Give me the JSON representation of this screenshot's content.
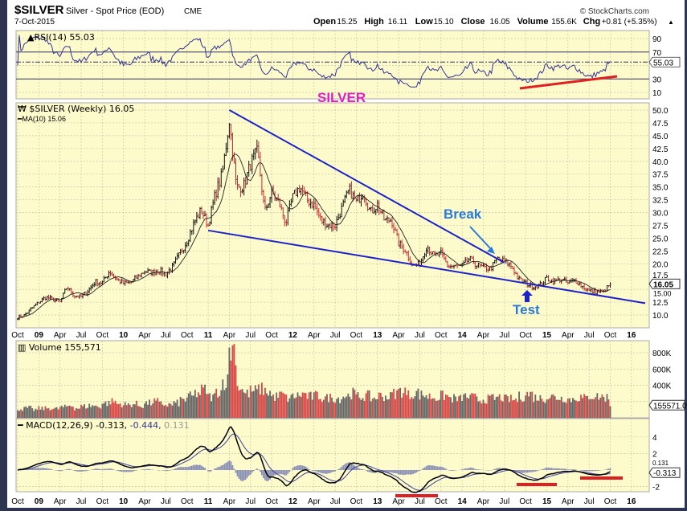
{
  "header": {
    "symbol": "$SILVER",
    "name": "Silver - Spot Price (EOD)",
    "exchange": "CME",
    "date": "7-Oct-2015",
    "brand": "© StockCharts.com",
    "quote": {
      "open_label": "Open",
      "open": "15.25",
      "high_label": "High",
      "high": "16.11",
      "low_label": "Low",
      "low": "15.10",
      "close_label": "Close",
      "close": "16.05",
      "volume_label": "Volume",
      "volume": "155.6K",
      "chg_label": "Chg",
      "chg": "+0.81 (+5.35%)"
    }
  },
  "colors": {
    "panel_bg": "#fdfbcc",
    "up": "#111111",
    "down": "#c8282e",
    "trendline": "#1c23c8",
    "annot": "#2a7ad8",
    "silver_label": "#e020c0",
    "red_line": "#e02020",
    "rsi": "#333399",
    "vol_up": "#666666",
    "vol_down": "#d84848",
    "hist": "#8a8fb8"
  },
  "chart_data": [
    {
      "type": "line",
      "title": "RSI(14) 55.03",
      "panel": "rsi",
      "y_ticks": [
        "90",
        "70",
        "50",
        "30",
        "10"
      ],
      "ylim": [
        0,
        100
      ],
      "reference_lines": [
        70,
        30
      ],
      "current": "55.03",
      "annotation": "SILVER"
    },
    {
      "type": "candlestick",
      "title": "$SILVER (Weekly) 16.05",
      "ma_label": "MA(10) 15.06",
      "panel": "price",
      "ylim": [
        8,
        51.5
      ],
      "y_ticks": [
        "50.0",
        "47.5",
        "45.0",
        "42.5",
        "40.0",
        "37.5",
        "35.0",
        "32.5",
        "30.0",
        "27.5",
        "25.0",
        "22.5",
        "20.0",
        "17.5",
        "15.00",
        "12.5",
        "10.0"
      ],
      "current": "16.05",
      "x_start": "2008-10",
      "monthly_close": [
        9.5,
        10,
        11.3,
        12.5,
        13.5,
        13,
        12.5,
        15.5,
        13.8,
        13.5,
        14.8,
        16.5,
        16.3,
        18.5,
        17,
        16.2,
        16.3,
        17.5,
        18.5,
        18.3,
        18.7,
        18,
        19.5,
        22,
        24.5,
        28,
        30.5,
        27.5,
        33.5,
        37.5,
        48,
        35,
        35,
        39.5,
        42,
        30,
        34,
        32,
        28,
        33,
        35,
        32.5,
        31.5,
        28.5,
        27.5,
        27.5,
        31,
        34.5,
        32,
        34,
        30,
        31.5,
        28.5,
        28.5,
        24,
        22.5,
        19.5,
        20,
        23.5,
        21.5,
        22,
        19.5,
        19.5,
        19.5,
        21,
        19.8,
        19.2,
        19,
        21,
        20.5,
        19.5,
        17,
        16.2,
        15.5,
        15.8,
        17.2,
        16.5,
        17,
        16.2,
        16.8,
        15.6,
        14.7,
        14.5,
        14.5,
        16.05
      ],
      "trendlines": [
        {
          "name": "upper",
          "from": {
            "month": 30,
            "price": 50
          },
          "to": {
            "month": 69,
            "price": 20.2
          }
        },
        {
          "name": "lower",
          "from": {
            "month": 27,
            "price": 26.5
          },
          "to": {
            "month": 89,
            "price": 12.3
          }
        }
      ],
      "annotations": [
        {
          "text": "Break",
          "month": 66,
          "price": 20.8
        },
        {
          "text": "Test",
          "month": 72,
          "price": 15.2
        }
      ]
    },
    {
      "type": "bar",
      "title": "Volume 155,571",
      "panel": "volume",
      "y_ticks": [
        "800K",
        "600K",
        "400K",
        "200K"
      ],
      "ylim": [
        0,
        950
      ],
      "current": "155571.0",
      "monthly_volume_k": [
        110,
        120,
        100,
        115,
        120,
        110,
        130,
        150,
        120,
        140,
        150,
        140,
        180,
        200,
        170,
        160,
        170,
        150,
        180,
        200,
        170,
        160,
        180,
        220,
        260,
        300,
        340,
        260,
        330,
        450,
        850,
        380,
        300,
        330,
        350,
        320,
        260,
        280,
        240,
        270,
        290,
        260,
        270,
        240,
        250,
        240,
        270,
        300,
        260,
        270,
        240,
        270,
        260,
        300,
        330,
        280,
        310,
        280,
        260,
        250,
        270,
        240,
        230,
        260,
        250,
        220,
        230,
        240,
        250,
        230,
        220,
        260,
        290,
        250,
        240,
        260,
        250,
        240,
        230,
        250,
        240,
        270,
        260,
        250,
        160
      ]
    },
    {
      "type": "line",
      "title": "MACD(12,26,9) -0.313, -0.444, 0.131",
      "legend": {
        "macd": "-0.313",
        "signal": "-0.444",
        "histogram": "0.131"
      },
      "panel": "macd",
      "y_ticks": [
        "4",
        "2",
        "-2"
      ],
      "ylim": [
        -3,
        5.5
      ],
      "current": "-0.313",
      "current_hist": "0.131"
    }
  ],
  "x_axis": {
    "labels": [
      {
        "t": "Oct",
        "m": 0
      },
      {
        "t": "09",
        "m": 3,
        "bold": true
      },
      {
        "t": "Apr",
        "m": 6
      },
      {
        "t": "Jul",
        "m": 9
      },
      {
        "t": "Oct",
        "m": 12
      },
      {
        "t": "10",
        "m": 15,
        "bold": true
      },
      {
        "t": "Apr",
        "m": 18
      },
      {
        "t": "Jul",
        "m": 21
      },
      {
        "t": "Oct",
        "m": 24
      },
      {
        "t": "11",
        "m": 27,
        "bold": true
      },
      {
        "t": "Apr",
        "m": 30
      },
      {
        "t": "Jul",
        "m": 33
      },
      {
        "t": "Oct",
        "m": 36
      },
      {
        "t": "12",
        "m": 39,
        "bold": true
      },
      {
        "t": "Apr",
        "m": 42
      },
      {
        "t": "Jul",
        "m": 45
      },
      {
        "t": "Oct",
        "m": 48
      },
      {
        "t": "13",
        "m": 51,
        "bold": true
      },
      {
        "t": "Apr",
        "m": 54
      },
      {
        "t": "Jul",
        "m": 57
      },
      {
        "t": "Oct",
        "m": 60
      },
      {
        "t": "14",
        "m": 63,
        "bold": true
      },
      {
        "t": "Apr",
        "m": 66
      },
      {
        "t": "Jul",
        "m": 69
      },
      {
        "t": "Oct",
        "m": 72
      },
      {
        "t": "15",
        "m": 75,
        "bold": true
      },
      {
        "t": "Apr",
        "m": 78
      },
      {
        "t": "Jul",
        "m": 81
      },
      {
        "t": "Oct",
        "m": 84
      },
      {
        "t": "16",
        "m": 87,
        "bold": true
      }
    ]
  }
}
